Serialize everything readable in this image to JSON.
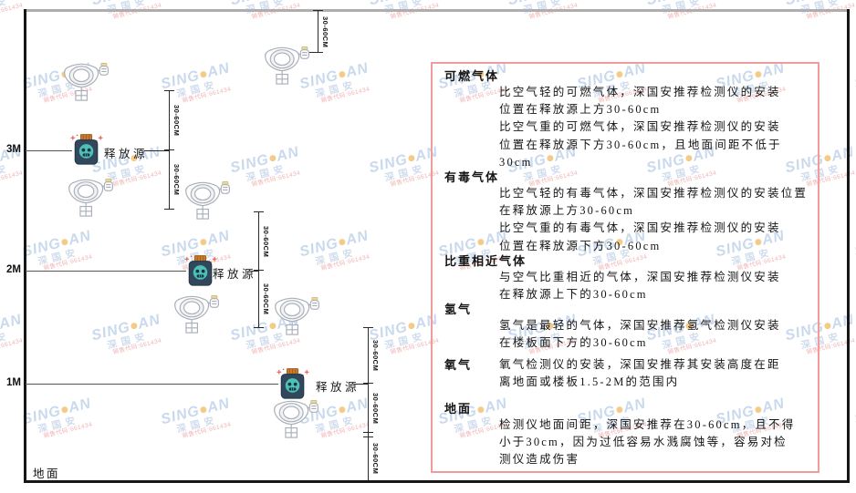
{
  "watermark": {
    "brand_left": "SING",
    "brand_right": "AN",
    "brand_sub": "深国安",
    "note": "销售代码:661434"
  },
  "diagram": {
    "ground_label": "地面",
    "height_labels": [
      "3M",
      "2M",
      "1M"
    ],
    "release_source_label": "释放源",
    "dimension_label": "30-60CM"
  },
  "panel": {
    "sections": [
      {
        "heading": "可燃气体",
        "paragraphs": [
          "比空气轻的可燃气体，深国安推荐检测仪的安装\n位置在释放源上方30-60cm",
          "比空气重的可燃气体，深国安推荐检测仪的安装\n位置在释放源下方30-60cm，且地面间距不低于\n30cm"
        ]
      },
      {
        "heading": "有毒气体",
        "paragraphs": [
          "比空气轻的有毒气体，深国安推荐检测仪的安装位置\n在释放源上方30-60cm",
          "比空气重的有毒气体，深国安推荐检测仪的安装\n位置在释放源下方30-60cm"
        ]
      },
      {
        "heading": "比重相近气体",
        "paragraphs": [
          "与空气比重相近的气体，深国安推荐检测仪安装\n在释放源上下的30-60cm"
        ]
      },
      {
        "heading": "氢气",
        "paragraphs": [
          "氢气是最轻的气体，深国安推荐氢气检测仪安装\n在楼板面下方的30-60cm"
        ]
      },
      {
        "heading": "氧气",
        "paragraphs": [
          "氧气检测仪的安装，深国安推荐其安装高度在距\n离地面或楼板1.5-2M的范围内"
        ]
      },
      {
        "heading": "地面",
        "paragraphs": [
          "检测仪地面间距，深国安推荐在30-60cm，且不得\n小于30cm，因为过低容易水溅腐蚀等，容易对检\n测仪造成伤害"
        ]
      }
    ]
  },
  "colors": {
    "panel_border": "#f29b9b",
    "watermark_blue": "#5886c8",
    "bottle_body": "#31485c",
    "bottle_cap": "#c97b2d",
    "emblem_teal": "#4fc0b7",
    "sparkle_red": "#e05252",
    "detector_stroke": "#a9afb8"
  }
}
